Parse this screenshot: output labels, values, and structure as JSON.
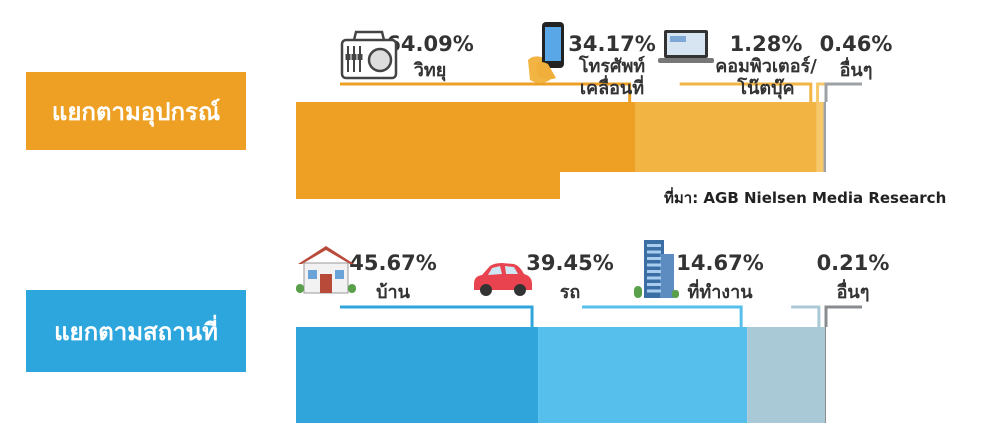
{
  "chart_data": {
    "type": "bar",
    "stacked": true,
    "orientation": "horizontal",
    "groups": [
      {
        "label": "แยกตามอุปกรณ์",
        "label_color": "#EDA024",
        "segments": [
          {
            "pct_text": "64.09%",
            "name": [
              "วิทยุ"
            ],
            "value": 64.09,
            "color": "#EDA024",
            "icon": "radio-icon"
          },
          {
            "pct_text": "34.17%",
            "name": [
              "โทรศัพท์",
              "เคลื่อนที่"
            ],
            "value": 34.17,
            "color": "#F2B443",
            "icon": "mobile-phone-icon"
          },
          {
            "pct_text": "1.28%",
            "name": [
              "คอมพิวเตอร์/",
              "โน๊ตบุ๊ค"
            ],
            "value": 1.28,
            "color": "#F6C86A",
            "icon": "laptop-icon"
          },
          {
            "pct_text": "0.46%",
            "name": [
              "อื่นๆ"
            ],
            "value": 0.46,
            "color": "#9EA1A4",
            "icon": ""
          }
        ]
      },
      {
        "label": "แยกตามสถานที่",
        "label_color": "#2DA6DE",
        "segments": [
          {
            "pct_text": "45.67%",
            "name": [
              "บ้าน"
            ],
            "value": 45.67,
            "color": "#2FA5DC",
            "icon": "house-icon"
          },
          {
            "pct_text": "39.45%",
            "name": [
              "รถ"
            ],
            "value": 39.45,
            "color": "#56BFEC",
            "icon": "car-icon"
          },
          {
            "pct_text": "14.67%",
            "name": [
              "ที่ทำงาน"
            ],
            "value": 14.67,
            "color": "#A9C9D6",
            "icon": "office-building-icon"
          },
          {
            "pct_text": "0.21%",
            "name": [
              "อื่นๆ"
            ],
            "value": 0.21,
            "color": "#888C90",
            "icon": ""
          }
        ]
      }
    ],
    "source": "ที่มา: AGB Nielsen Media Research"
  }
}
